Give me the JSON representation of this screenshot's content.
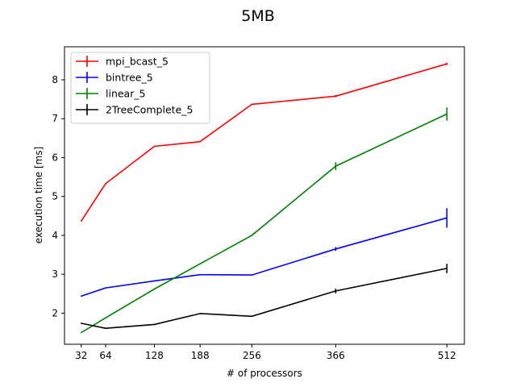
{
  "chart_data": {
    "type": "line",
    "title": "5MB",
    "xlabel": "# of processors",
    "ylabel": "execution time [ms]",
    "x": [
      32,
      64,
      128,
      188,
      256,
      366,
      512
    ],
    "xticks": [
      32,
      64,
      128,
      188,
      256,
      366,
      512
    ],
    "yticks": [
      2,
      3,
      4,
      5,
      6,
      7,
      8
    ],
    "xlim": [
      10,
      535
    ],
    "ylim": [
      1.2,
      8.85
    ],
    "grid": false,
    "legend_position": "top-left",
    "series": [
      {
        "name": "mpi_bcast_5",
        "color": "#ff0000",
        "values": [
          4.37,
          5.33,
          6.29,
          6.41,
          7.37,
          7.58,
          8.41
        ],
        "errors": [
          0,
          0,
          0,
          0,
          0,
          0.03,
          0.03
        ]
      },
      {
        "name": "bintree_5",
        "color": "#0000ff",
        "values": [
          2.44,
          2.65,
          2.83,
          2.99,
          2.98,
          3.65,
          4.45
        ],
        "errors": [
          0,
          0,
          0,
          0,
          0,
          0.05,
          0.25
        ]
      },
      {
        "name": "linear_5",
        "color": "#008000",
        "values": [
          1.5,
          1.88,
          2.62,
          3.27,
          4.0,
          5.78,
          7.12
        ],
        "errors": [
          0,
          0,
          0,
          0,
          0,
          0.1,
          0.17
        ]
      },
      {
        "name": "2TreeComplete_5",
        "color": "#000000",
        "values": [
          1.74,
          1.61,
          1.71,
          1.99,
          1.92,
          2.57,
          3.15
        ],
        "errors": [
          0,
          0,
          0,
          0,
          0,
          0.06,
          0.12
        ]
      }
    ]
  }
}
